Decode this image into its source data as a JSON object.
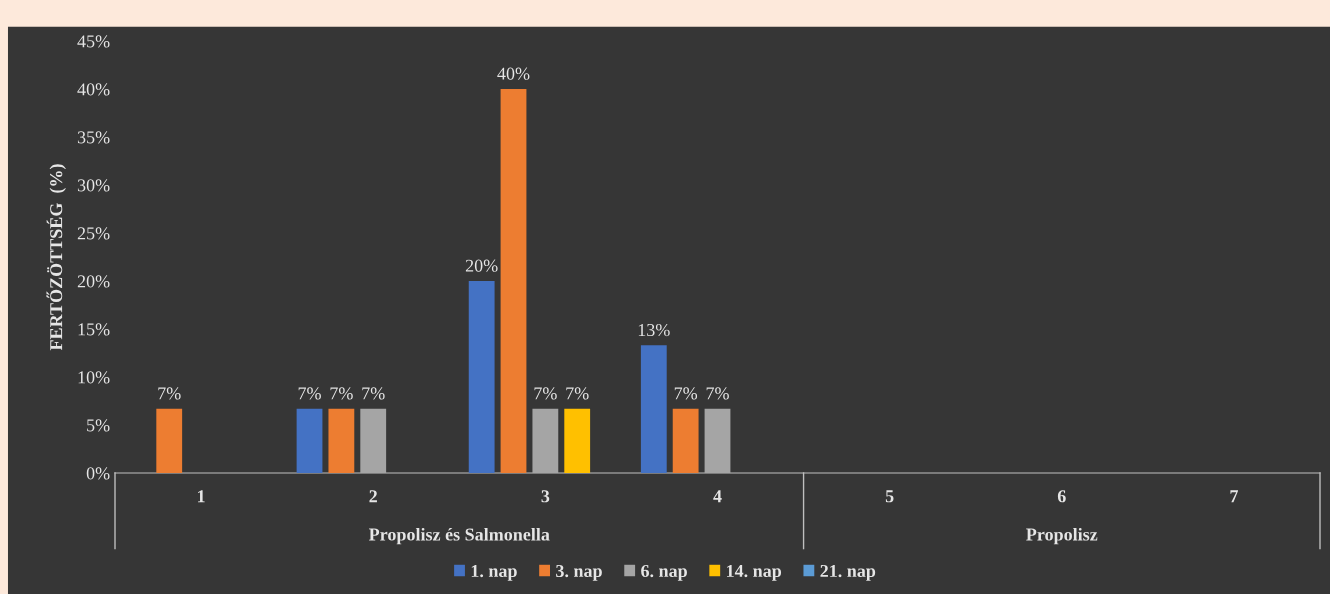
{
  "chart_data": {
    "type": "bar",
    "ylabel": "FERTŐZÖTTSÉG  (%)",
    "categories": [
      "1",
      "2",
      "3",
      "4",
      "5",
      "6",
      "7"
    ],
    "series": [
      {
        "name": "1. nap",
        "color": "#4472c4",
        "values": [
          null,
          6.7,
          20,
          13.3,
          null,
          null,
          null
        ],
        "value_labels": [
          null,
          "7%",
          "20%",
          "13%",
          null,
          null,
          null
        ]
      },
      {
        "name": "3. nap",
        "color": "#ed7d31",
        "values": [
          6.7,
          6.7,
          40,
          6.7,
          null,
          null,
          null
        ],
        "value_labels": [
          "7%",
          "7%",
          "40%",
          "7%",
          null,
          null,
          null
        ]
      },
      {
        "name": "6. nap",
        "color": "#a5a5a5",
        "values": [
          null,
          6.7,
          6.7,
          6.7,
          null,
          null,
          null
        ],
        "value_labels": [
          null,
          "7%",
          "7%",
          "7%",
          null,
          null,
          null
        ]
      },
      {
        "name": "14. nap",
        "color": "#ffc000",
        "values": [
          null,
          null,
          6.7,
          null,
          null,
          null,
          null
        ],
        "value_labels": [
          null,
          null,
          "7%",
          null,
          null,
          null,
          null
        ]
      },
      {
        "name": "21. nap",
        "color": "#5b9bd5",
        "values": [
          null,
          null,
          null,
          null,
          null,
          null,
          null
        ]
      }
    ],
    "annotations": [
      "Propolisz és Salmonella",
      "Propolisz"
    ],
    "ylim": [
      0,
      45
    ],
    "yticks": [
      {
        "value": 0,
        "label": "0%"
      },
      {
        "value": 5,
        "label": "5%"
      },
      {
        "value": 10,
        "label": "10%"
      },
      {
        "value": 15,
        "label": "15%"
      },
      {
        "value": 20,
        "label": "20%"
      },
      {
        "value": 25,
        "label": "25%"
      },
      {
        "value": 30,
        "label": "30%"
      },
      {
        "value": 35,
        "label": "35%"
      },
      {
        "value": 40,
        "label": "40%"
      },
      {
        "value": 45,
        "label": "45%"
      }
    ],
    "grid": false,
    "legend": "bottom"
  }
}
